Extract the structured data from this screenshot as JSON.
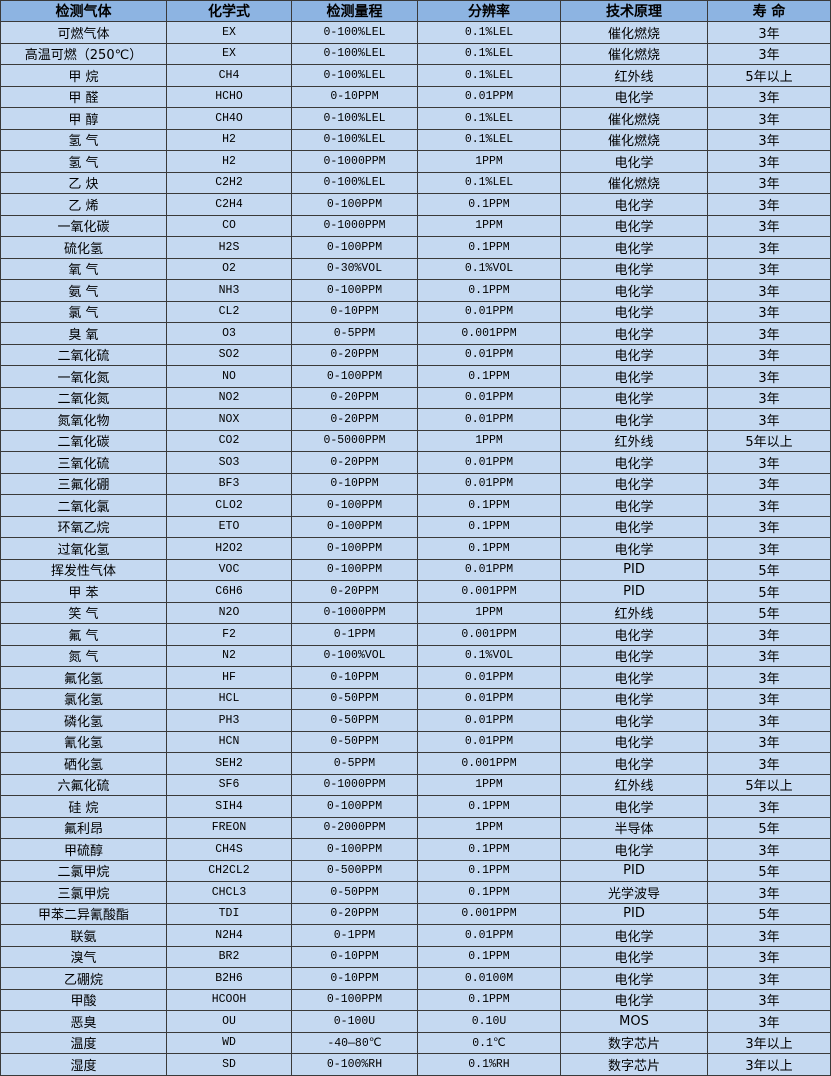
{
  "table": {
    "headers": [
      "检测气体",
      "化学式",
      "检测量程",
      "分辨率",
      "技术原理",
      "寿 命"
    ],
    "rows": [
      [
        "可燃气体",
        "EX",
        "0-100%LEL",
        "0.1%LEL",
        "催化燃烧",
        "3年"
      ],
      [
        "高温可燃（250℃）",
        "EX",
        "0-100%LEL",
        "0.1%LEL",
        "催化燃烧",
        "3年"
      ],
      [
        "甲 烷",
        "CH4",
        "0-100%LEL",
        "0.1%LEL",
        "红外线",
        "5年以上"
      ],
      [
        "甲 醛",
        "HCHO",
        "0-10PPM",
        "0.01PPM",
        "电化学",
        "3年"
      ],
      [
        "甲 醇",
        "CH4O",
        "0-100%LEL",
        "0.1%LEL",
        "催化燃烧",
        "3年"
      ],
      [
        "氢 气",
        "H2",
        "0-100%LEL",
        "0.1%LEL",
        "催化燃烧",
        "3年"
      ],
      [
        "氢 气",
        "H2",
        "0-1000PPM",
        "1PPM",
        "电化学",
        "3年"
      ],
      [
        "乙 炔",
        "C2H2",
        "0-100%LEL",
        "0.1%LEL",
        "催化燃烧",
        "3年"
      ],
      [
        "乙 烯",
        "C2H4",
        "0-100PPM",
        "0.1PPM",
        "电化学",
        "3年"
      ],
      [
        "一氧化碳",
        "CO",
        "0-1000PPM",
        "1PPM",
        "电化学",
        "3年"
      ],
      [
        "硫化氢",
        "H2S",
        "0-100PPM",
        "0.1PPM",
        "电化学",
        "3年"
      ],
      [
        "氧 气",
        "O2",
        "0-30%VOL",
        "0.1%VOL",
        "电化学",
        "3年"
      ],
      [
        "氨 气",
        "NH3",
        "0-100PPM",
        "0.1PPM",
        "电化学",
        "3年"
      ],
      [
        "氯 气",
        "CL2",
        "0-10PPM",
        "0.01PPM",
        "电化学",
        "3年"
      ],
      [
        "臭 氧",
        "O3",
        "0-5PPM",
        "0.001PPM",
        "电化学",
        "3年"
      ],
      [
        "二氧化硫",
        "SO2",
        "0-20PPM",
        "0.01PPM",
        "电化学",
        "3年"
      ],
      [
        "一氧化氮",
        "NO",
        "0-100PPM",
        "0.1PPM",
        "电化学",
        "3年"
      ],
      [
        "二氧化氮",
        "NO2",
        "0-20PPM",
        "0.01PPM",
        "电化学",
        "3年"
      ],
      [
        "氮氧化物",
        "NOX",
        "0-20PPM",
        "0.01PPM",
        "电化学",
        "3年"
      ],
      [
        "二氧化碳",
        "CO2",
        "0-5000PPM",
        "1PPM",
        "红外线",
        "5年以上"
      ],
      [
        "三氧化硫",
        "SO3",
        "0-20PPM",
        "0.01PPM",
        "电化学",
        "3年"
      ],
      [
        "三氟化硼",
        "BF3",
        "0-10PPM",
        "0.01PPM",
        "电化学",
        "3年"
      ],
      [
        "二氧化氯",
        "CLO2",
        "0-100PPM",
        "0.1PPM",
        "电化学",
        "3年"
      ],
      [
        "环氧乙烷",
        "ETO",
        "0-100PPM",
        "0.1PPM",
        "电化学",
        "3年"
      ],
      [
        "过氧化氢",
        "H2O2",
        "0-100PPM",
        "0.1PPM",
        "电化学",
        "3年"
      ],
      [
        "挥发性气体",
        "VOC",
        "0-100PPM",
        "0.01PPM",
        "PID",
        "5年"
      ],
      [
        "甲 苯",
        "C6H6",
        "0-20PPM",
        "0.001PPM",
        "PID",
        "5年"
      ],
      [
        "笑 气",
        "N2O",
        "0-1000PPM",
        "1PPM",
        "红外线",
        "5年"
      ],
      [
        "氟 气",
        "F2",
        "0-1PPM",
        "0.001PPM",
        "电化学",
        "3年"
      ],
      [
        "氮 气",
        "N2",
        "0-100%VOL",
        "0.1%VOL",
        "电化学",
        "3年"
      ],
      [
        "氟化氢",
        "HF",
        "0-10PPM",
        "0.01PPM",
        "电化学",
        "3年"
      ],
      [
        "氯化氢",
        "HCL",
        "0-50PPM",
        "0.01PPM",
        "电化学",
        "3年"
      ],
      [
        "磷化氢",
        "PH3",
        "0-50PPM",
        "0.01PPM",
        "电化学",
        "3年"
      ],
      [
        "氰化氢",
        "HCN",
        "0-50PPM",
        "0.01PPM",
        "电化学",
        "3年"
      ],
      [
        "硒化氢",
        "SEH2",
        "0-5PPM",
        "0.001PPM",
        "电化学",
        "3年"
      ],
      [
        "六氟化硫",
        "SF6",
        "0-1000PPM",
        "1PPM",
        "红外线",
        "5年以上"
      ],
      [
        "硅 烷",
        "SIH4",
        "0-100PPM",
        "0.1PPM",
        "电化学",
        "3年"
      ],
      [
        "氟利昂",
        "FREON",
        "0-2000PPM",
        "1PPM",
        "半导体",
        "5年"
      ],
      [
        "甲硫醇",
        "CH4S",
        "0-100PPM",
        "0.1PPM",
        "电化学",
        "3年"
      ],
      [
        "二氯甲烷",
        "CH2CL2",
        "0-500PPM",
        "0.1PPM",
        "PID",
        "5年"
      ],
      [
        "三氯甲烷",
        "CHCL3",
        "0-50PPM",
        "0.1PPM",
        "光学波导",
        "3年"
      ],
      [
        "甲苯二异氰酸酯",
        "TDI",
        "0-20PPM",
        "0.001PPM",
        "PID",
        "5年"
      ],
      [
        "联氨",
        "N2H4",
        "0-1PPM",
        "0.01PPM",
        "电化学",
        "3年"
      ],
      [
        "溴气",
        "BR2",
        "0-10PPM",
        "0.1PPM",
        "电化学",
        "3年"
      ],
      [
        "乙硼烷",
        "B2H6",
        "0-10PPM",
        "0.0100M",
        "电化学",
        "3年"
      ],
      [
        "甲酸",
        "HCOOH",
        "0-100PPM",
        "0.1PPM",
        "电化学",
        "3年"
      ],
      [
        "恶臭",
        "OU",
        "0-100U",
        "0.10U",
        "MOS",
        "3年"
      ],
      [
        "温度",
        "WD",
        "-40—80℃",
        "0.1℃",
        "数字芯片",
        "3年以上"
      ],
      [
        "湿度",
        "SD",
        "0-100%RH",
        "0.1%RH",
        "数字芯片",
        "3年以上"
      ]
    ]
  },
  "colors": {
    "header_bg": "#8db4e2",
    "row_bg": "#c5d9f1",
    "border": "#3a3a3a"
  }
}
